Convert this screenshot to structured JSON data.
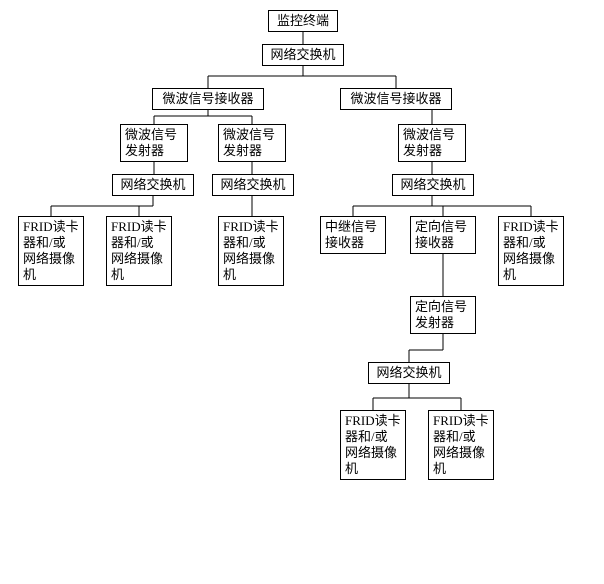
{
  "type": "tree",
  "background_color": "#ffffff",
  "border_color": "#000000",
  "font_size": 13,
  "nodes": {
    "root": "监控终端",
    "switch1": "网络交换机",
    "recvL": "微波信号接收器",
    "recvR": "微波信号接收器",
    "txL1": "微波信号\n发射器",
    "txL2": "微波信号\n发射器",
    "txR": "微波信号\n发射器",
    "swL1": "网络交换机",
    "swL2": "网络交换机",
    "swR": "网络交换机",
    "frid1": "FRID读卡\n器和/或\n网络摄像\n机",
    "frid2": "FRID读卡\n器和/或\n网络摄像\n机",
    "frid3": "FRID读卡\n器和/或\n网络摄像\n机",
    "relay": "中继信号\n接收器",
    "dirRecv": "定向信号\n接收器",
    "frid4": "FRID读卡\n器和/或\n网络摄像\n机",
    "dirTx": "定向信号\n发射器",
    "swB": "网络交换机",
    "fridB1": "FRID读卡\n器和/或\n网络摄像\n机",
    "fridB2": "FRID读卡\n器和/或\n网络摄像\n机"
  }
}
